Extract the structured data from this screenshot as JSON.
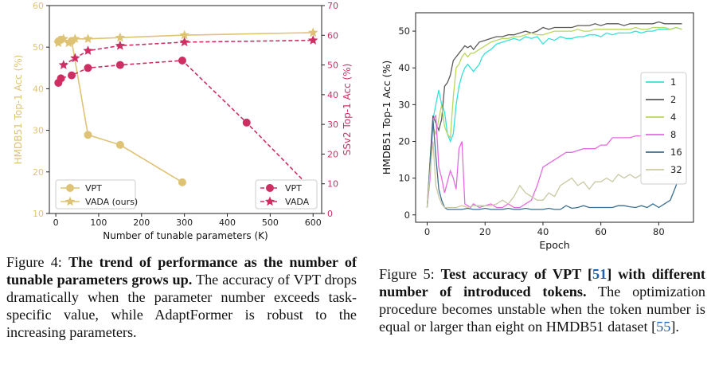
{
  "figure4": {
    "chart_data": {
      "type": "line",
      "xlabel": "Number of tunable parameters (K)",
      "ylabel_left": "HMDB51 Top-1 Acc (%)",
      "ylabel_right": "SSv2 Top-1 Acc (%)",
      "x_ticks": [
        "0",
        "100",
        "200",
        "300",
        "400",
        "500",
        "600"
      ],
      "y_left_ticks": [
        "10",
        "20",
        "30",
        "40",
        "50",
        "60"
      ],
      "y_right_ticks": [
        "0",
        "10",
        "20",
        "30",
        "40",
        "50",
        "60",
        "70"
      ],
      "xlim": [
        -15,
        620
      ],
      "ylim_left": [
        10,
        60
      ],
      "ylim_right": [
        0,
        70
      ],
      "colors": {
        "hmdb": "#dfc374",
        "ssv2": "#cf2e63"
      },
      "series": [
        {
          "name": "VPT",
          "axis": "left",
          "marker": "circle",
          "style": "solid",
          "x": [
            6,
            12,
            37,
            75,
            150,
            295
          ],
          "y": [
            51.4,
            51.8,
            51.5,
            28.9,
            26.5,
            17.5
          ]
        },
        {
          "name": "VADA (ours)",
          "axis": "left",
          "marker": "star",
          "style": "solid",
          "x": [
            6,
            18,
            30,
            45,
            75,
            150,
            300,
            600
          ],
          "y": [
            51.0,
            52.0,
            51.0,
            52.0,
            52.0,
            52.3,
            52.9,
            53.5
          ]
        },
        {
          "name": "VPT",
          "axis": "right",
          "marker": "circle",
          "style": "dashed",
          "x": [
            6,
            12,
            37,
            75,
            150,
            295,
            445,
            585
          ],
          "y": [
            44.0,
            45.5,
            46.5,
            49.0,
            50.0,
            51.5,
            30.6,
            10.0
          ]
        },
        {
          "name": "VADA",
          "axis": "right",
          "marker": "star",
          "style": "dashed",
          "x": [
            18,
            45,
            75,
            150,
            300,
            600
          ],
          "y": [
            50.0,
            52.3,
            54.8,
            56.5,
            57.7,
            58.3
          ]
        }
      ],
      "legend_left": [
        "VPT",
        "VADA (ours)"
      ],
      "legend_right": [
        "VPT",
        "VADA"
      ]
    },
    "caption": {
      "number": "Figure 4:",
      "title": "The trend of performance as the number of tunable parameters grows up.",
      "text": "The accuracy of VPT drops dramatically when the parameter number exceeds task-specific value, while AdaptFormer is robust to the increasing parameters."
    }
  },
  "figure5": {
    "chart_data": {
      "type": "line",
      "xlabel": "Epoch",
      "ylabel": "HMDB51 Top-1 Acc (%)",
      "x_ticks": [
        "0",
        "20",
        "40",
        "60",
        "80"
      ],
      "y_ticks": [
        "0",
        "10",
        "20",
        "30",
        "40",
        "50"
      ],
      "xlim": [
        -4,
        92
      ],
      "ylim": [
        -2,
        55
      ],
      "legend": [
        "1",
        "2",
        "4",
        "8",
        "16",
        "32"
      ],
      "series": [
        {
          "name": "1",
          "color": "#33e3d8",
          "x": [
            0,
            1,
            2,
            3,
            4,
            5,
            6,
            7,
            8,
            9,
            10,
            11,
            12,
            13,
            14,
            15,
            16,
            17,
            18,
            19,
            20,
            22,
            24,
            26,
            28,
            30,
            32,
            34,
            36,
            38,
            40,
            42,
            44,
            46,
            48,
            50,
            52,
            54,
            56,
            58,
            60,
            62,
            64,
            66,
            68,
            70,
            72,
            74,
            76,
            78,
            80,
            82,
            84,
            86,
            88
          ],
          "y": [
            2,
            12,
            26,
            30,
            34,
            30,
            28,
            22,
            20,
            22,
            30,
            35,
            38,
            40,
            41,
            40,
            39,
            40,
            41,
            43,
            44,
            45,
            46.5,
            47,
            47.5,
            48,
            47.5,
            48.5,
            48,
            48.5,
            46.5,
            48,
            47.5,
            48.5,
            48,
            48,
            48.5,
            48.5,
            49,
            49,
            48.5,
            49.5,
            49,
            49.5,
            49.5,
            49.5,
            50,
            49.5,
            50,
            50,
            50.5,
            50.5,
            50.5,
            51,
            50.5
          ]
        },
        {
          "name": "2",
          "color": "#5a5a5a",
          "x": [
            0,
            1,
            2,
            3,
            4,
            5,
            6,
            7,
            8,
            9,
            10,
            11,
            12,
            13,
            14,
            15,
            16,
            18,
            20,
            22,
            24,
            26,
            28,
            30,
            32,
            34,
            36,
            38,
            40,
            42,
            44,
            46,
            48,
            50,
            52,
            54,
            56,
            58,
            60,
            62,
            64,
            66,
            68,
            70,
            72,
            74,
            76,
            78,
            80,
            82,
            84,
            86,
            88
          ],
          "y": [
            2,
            15,
            27,
            25,
            23,
            26,
            35,
            36,
            38,
            42,
            43,
            44,
            45,
            46,
            45.5,
            46,
            45,
            47,
            47.5,
            48,
            48.5,
            48.5,
            49,
            49,
            49.5,
            50,
            49.5,
            50,
            51,
            50.5,
            51,
            51,
            51,
            51,
            51.5,
            51.5,
            51.5,
            52,
            51.5,
            52,
            52,
            52,
            51.5,
            52,
            52,
            52,
            52,
            52,
            52.5,
            52,
            52,
            52,
            52
          ]
        },
        {
          "name": "4",
          "color": "#b9d65e",
          "x": [
            0,
            1,
            2,
            3,
            4,
            5,
            6,
            7,
            8,
            9,
            10,
            11,
            12,
            13,
            14,
            15,
            16,
            18,
            20,
            22,
            24,
            26,
            28,
            30,
            32,
            34,
            36,
            38,
            40,
            42,
            44,
            46,
            48,
            50,
            52,
            54,
            56,
            58,
            60,
            62,
            64,
            66,
            68,
            70,
            72,
            74,
            76,
            78,
            80,
            82,
            84,
            86,
            88
          ],
          "y": [
            2,
            14,
            24,
            22,
            26,
            30,
            24,
            22,
            21,
            32,
            40,
            41,
            43,
            44,
            43,
            44,
            44,
            45,
            46,
            47,
            47.5,
            48,
            48,
            48.5,
            48.5,
            49,
            49.5,
            49,
            49,
            49.5,
            50,
            50,
            50,
            50,
            50.5,
            50,
            50,
            50.5,
            50.5,
            50.5,
            50.5,
            50.5,
            50.5,
            50.5,
            51,
            50.5,
            50.5,
            51,
            51,
            51,
            50.5,
            51,
            50.5
          ]
        },
        {
          "name": "8",
          "color": "#e56ae0",
          "x": [
            0,
            1,
            2,
            3,
            4,
            5,
            6,
            7,
            8,
            9,
            10,
            11,
            12,
            13,
            14,
            15,
            16,
            18,
            20,
            22,
            24,
            26,
            28,
            30,
            32,
            34,
            36,
            38,
            40,
            42,
            44,
            46,
            48,
            50,
            52,
            54,
            56,
            58,
            60,
            62,
            64,
            66,
            68,
            70,
            72,
            74,
            76,
            78
          ],
          "y": [
            2,
            10,
            26,
            27,
            13,
            10,
            6,
            9,
            12,
            10,
            7,
            18,
            20,
            3,
            2.5,
            2,
            3,
            2,
            2.5,
            3,
            2,
            2,
            3,
            2,
            2,
            3,
            4,
            8,
            13,
            14,
            15,
            16,
            17,
            17,
            17.5,
            18,
            18,
            18,
            19,
            19,
            21,
            21,
            21,
            21,
            21.5,
            21.5,
            22,
            21.5
          ]
        },
        {
          "name": "16",
          "color": "#3d6f8f",
          "x": [
            0,
            1,
            2,
            3,
            4,
            5,
            6,
            7,
            8,
            10,
            12,
            14,
            16,
            18,
            20,
            22,
            24,
            26,
            28,
            30,
            32,
            34,
            36,
            38,
            40,
            42,
            44,
            46,
            48,
            50,
            52,
            54,
            56,
            58,
            60,
            62,
            64,
            66,
            68,
            70,
            72,
            74,
            76,
            78,
            80,
            82,
            84,
            86,
            88
          ],
          "y": [
            2,
            14,
            26,
            16,
            7,
            4,
            2,
            1.5,
            1.5,
            1.5,
            1.5,
            1.8,
            1.5,
            1.5,
            1.8,
            1.5,
            1.5,
            1.5,
            1.8,
            1.5,
            1.5,
            1.8,
            1.5,
            1.5,
            1.5,
            1.8,
            1.5,
            1.5,
            2.5,
            1.8,
            2,
            2.5,
            2,
            2,
            2,
            2,
            2,
            2.5,
            2.5,
            2.2,
            2,
            2.5,
            2,
            3,
            2,
            3,
            4,
            8,
            14
          ]
        },
        {
          "name": "32",
          "color": "#c9c9a4",
          "x": [
            0,
            1,
            2,
            3,
            4,
            5,
            6,
            7,
            8,
            9,
            10,
            12,
            14,
            16,
            18,
            20,
            22,
            24,
            26,
            28,
            30,
            32,
            34,
            36,
            38,
            40,
            42,
            44,
            46,
            48,
            50,
            52,
            54,
            56,
            58,
            60,
            62,
            64,
            66,
            68,
            70,
            72,
            74,
            76,
            78,
            80,
            82,
            84,
            86,
            88
          ],
          "y": [
            2,
            12,
            20,
            8,
            5,
            3,
            2,
            2,
            2,
            2,
            2,
            2.5,
            2,
            2.5,
            2.5,
            2.5,
            2.5,
            3,
            4,
            3,
            5,
            8,
            6,
            5,
            4,
            4,
            6,
            5,
            8,
            9,
            10,
            8,
            9,
            7,
            9,
            9,
            10,
            9,
            11,
            10,
            11,
            10,
            11,
            12,
            10,
            11,
            10.5,
            11,
            11,
            11
          ]
        }
      ]
    },
    "caption": {
      "number": "Figure 5:",
      "title_a": "Test accuracy of VPT [",
      "title_ref": "51",
      "title_b": "] with different number of introduced tokens.",
      "text_a": "The optimization procedure becomes unstable when the token number is equal or larger than eight on HMDB51 dataset [",
      "text_ref": "55",
      "text_b": "]."
    }
  }
}
